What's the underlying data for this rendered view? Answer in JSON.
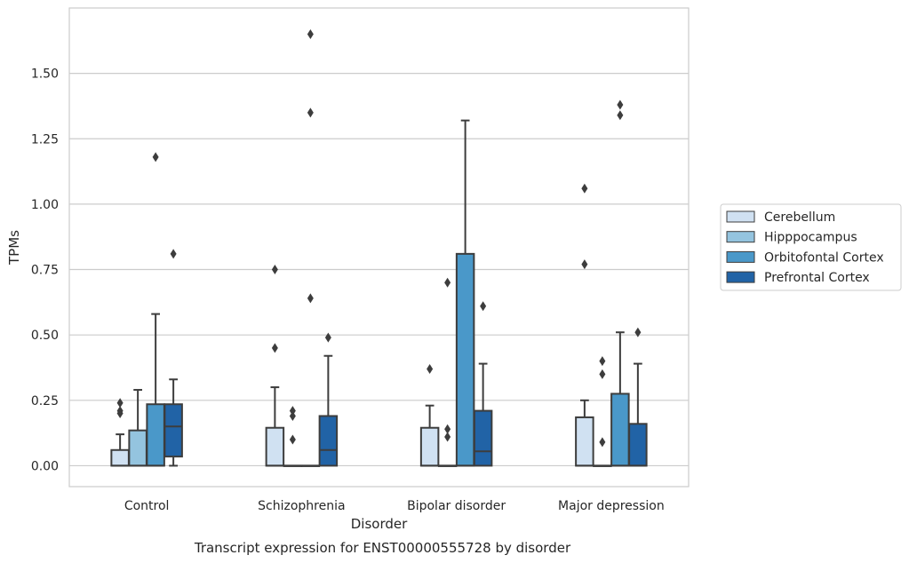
{
  "chart_data": {
    "type": "boxplot",
    "title": "Transcript expression for ENST00000555728 by disorder",
    "xlabel": "Disorder",
    "ylabel": "TPMs",
    "ylim": [
      -0.08,
      1.75
    ],
    "yticks": [
      "0.00",
      "0.25",
      "0.50",
      "0.75",
      "1.00",
      "1.25",
      "1.50"
    ],
    "grid": true,
    "legend_position": "right",
    "categories": [
      "Control",
      "Schizophrenia",
      "Bipolar disorder",
      "Major depression"
    ],
    "series": [
      {
        "name": "Cerebellum",
        "color": "#d0e1f2",
        "boxes": [
          {
            "q1": 0.0,
            "median": 0.0,
            "q3": 0.06,
            "whisker_low": 0.0,
            "whisker_high": 0.12,
            "outliers": [
              0.2,
              0.21,
              0.24
            ]
          },
          {
            "q1": 0.0,
            "median": 0.0,
            "q3": 0.145,
            "whisker_low": 0.0,
            "whisker_high": 0.3,
            "outliers": [
              0.45,
              0.75
            ]
          },
          {
            "q1": 0.0,
            "median": 0.0,
            "q3": 0.145,
            "whisker_low": 0.0,
            "whisker_high": 0.23,
            "outliers": [
              0.37
            ]
          },
          {
            "q1": 0.0,
            "median": 0.0,
            "q3": 0.185,
            "whisker_low": 0.0,
            "whisker_high": 0.25,
            "outliers": [
              0.77,
              1.06
            ]
          }
        ]
      },
      {
        "name": "Hipppocampus",
        "color": "#94c4df",
        "boxes": [
          {
            "q1": 0.0,
            "median": 0.0,
            "q3": 0.135,
            "whisker_low": 0.0,
            "whisker_high": 0.29,
            "outliers": []
          },
          {
            "q1": 0.0,
            "median": 0.0,
            "q3": 0.0,
            "whisker_low": 0.0,
            "whisker_high": 0.0,
            "outliers": [
              0.1,
              0.19,
              0.21
            ]
          },
          {
            "q1": 0.0,
            "median": 0.0,
            "q3": 0.0,
            "whisker_low": 0.0,
            "whisker_high": 0.0,
            "outliers": [
              0.11,
              0.14,
              0.7
            ]
          },
          {
            "q1": 0.0,
            "median": 0.0,
            "q3": 0.0,
            "whisker_low": 0.0,
            "whisker_high": 0.0,
            "outliers": [
              0.09,
              0.35,
              0.4
            ]
          }
        ]
      },
      {
        "name": "Orbitofontal Cortex",
        "color": "#4a98c9",
        "boxes": [
          {
            "q1": 0.0,
            "median": 0.0,
            "q3": 0.235,
            "whisker_low": 0.0,
            "whisker_high": 0.58,
            "outliers": [
              1.18
            ]
          },
          {
            "q1": 0.0,
            "median": 0.0,
            "q3": 0.0,
            "whisker_low": 0.0,
            "whisker_high": 0.0,
            "outliers": [
              0.64,
              1.35,
              1.65
            ]
          },
          {
            "q1": 0.0,
            "median": 0.0,
            "q3": 0.81,
            "whisker_low": 0.0,
            "whisker_high": 1.32,
            "outliers": []
          },
          {
            "q1": 0.0,
            "median": 0.0,
            "q3": 0.275,
            "whisker_low": 0.0,
            "whisker_high": 0.51,
            "outliers": [
              1.34,
              1.38
            ]
          }
        ]
      },
      {
        "name": "Prefrontal Cortex",
        "color": "#2163a6",
        "boxes": [
          {
            "q1": 0.035,
            "median": 0.15,
            "q3": 0.235,
            "whisker_low": 0.0,
            "whisker_high": 0.33,
            "outliers": [
              0.81
            ]
          },
          {
            "q1": 0.0,
            "median": 0.06,
            "q3": 0.19,
            "whisker_low": 0.0,
            "whisker_high": 0.42,
            "outliers": [
              0.49
            ]
          },
          {
            "q1": 0.0,
            "median": 0.055,
            "q3": 0.21,
            "whisker_low": 0.0,
            "whisker_high": 0.39,
            "outliers": [
              0.61
            ]
          },
          {
            "q1": 0.0,
            "median": 0.0,
            "q3": 0.16,
            "whisker_low": 0.0,
            "whisker_high": 0.39,
            "outliers": [
              0.51
            ]
          }
        ]
      }
    ]
  }
}
